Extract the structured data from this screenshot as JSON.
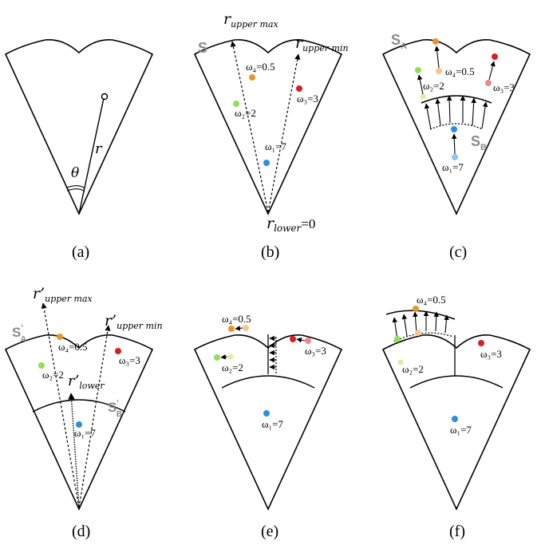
{
  "colors": {
    "outline": "#000000",
    "label_gray": "#8a8a8a",
    "omega1": "#2b8fd9",
    "omega2": "#8fe05a",
    "omega2_light": "#d8f0a0",
    "omega3": "#d81e1e",
    "omega3_light": "#e88a8a",
    "omega4": "#e8962a",
    "omega4_light": "#f2c890",
    "omega1_light": "#8cc4ec"
  },
  "panels": {
    "a": {
      "label": "(a)",
      "theta": "θ",
      "r": "r"
    },
    "b": {
      "label": "(b)",
      "region": "S",
      "r_upper_max": "r",
      "r_upper_max_sub": "upper max",
      "r_upper_min": "r",
      "r_upper_min_sub": "upper min",
      "r_lower": "r",
      "r_lower_sub": "lower",
      "r_lower_val": "=0",
      "w1": "ω₁=7",
      "w2": "ω₂=2",
      "w3": "ω₃=3",
      "w4": "ω₄=0.5"
    },
    "c": {
      "label": "(c)",
      "region_a": "S",
      "region_a_sub": "A",
      "region_b": "S",
      "region_b_sub": "B",
      "w1": "ω₁=7",
      "w2": "ω₂=2",
      "w3": "ω₃=3",
      "w4": "ω₄=0.5"
    },
    "d": {
      "label": "(d)",
      "r_upper_max": "r’",
      "r_upper_max_sub": "upper max",
      "r_upper_min": "r’",
      "r_upper_min_sub": "upper min",
      "r_lower": "r’",
      "r_lower_sub": "lower",
      "region_a": "S",
      "region_a_sup": "'",
      "region_a_sub": "A",
      "region_b": "S",
      "region_b_sup": "'",
      "region_b_sub": "B",
      "w1": "ω₁=7",
      "w2": "ω₂=2",
      "w3": "ω₃=3",
      "w4": "ω₄=0.5"
    },
    "e": {
      "label": "(e)",
      "w1": "ω₁=7",
      "w2": "ω₂=2",
      "w3": "ω₃=3",
      "w4": "ω₄=0.5"
    },
    "f": {
      "label": "(f)",
      "w1": "ω₁=7",
      "w2": "ω₂=2",
      "w3": "ω₃=3",
      "w4": "ω₄=0.5"
    }
  }
}
